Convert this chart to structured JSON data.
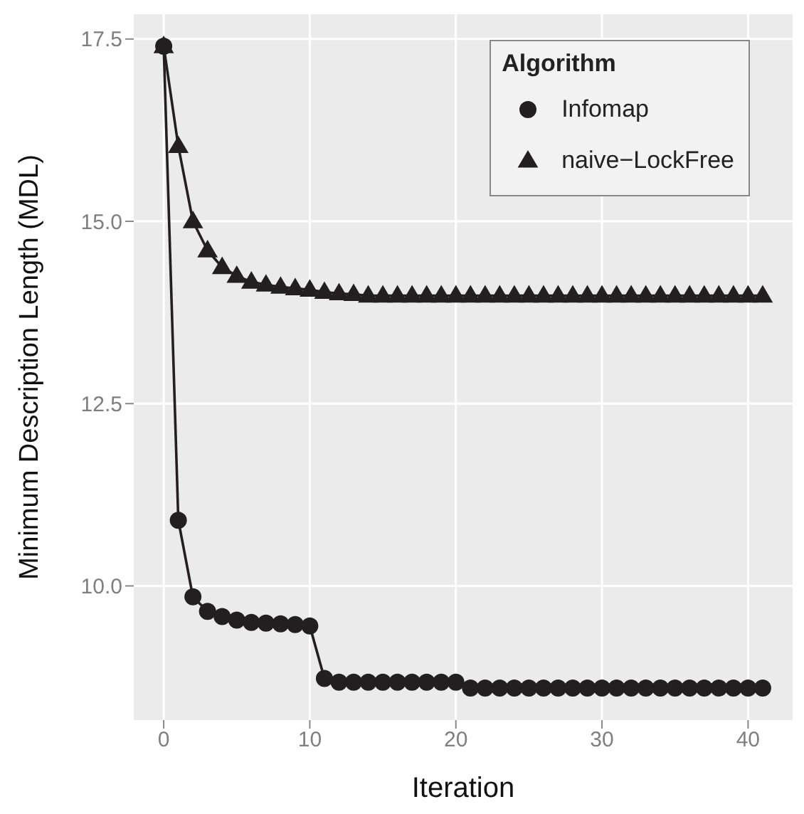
{
  "chart_data": {
    "type": "line",
    "xlabel": "Iteration",
    "ylabel": "Minimum Description Length (MDL)",
    "legend_title": "Algorithm",
    "legend": "top right",
    "grid": true,
    "line_style": "solid",
    "x": [
      0,
      1,
      2,
      3,
      4,
      5,
      6,
      7,
      8,
      9,
      10,
      11,
      12,
      13,
      14,
      15,
      16,
      17,
      18,
      19,
      20,
      21,
      22,
      23,
      24,
      25,
      26,
      27,
      28,
      29,
      30,
      31,
      32,
      33,
      34,
      35,
      36,
      37,
      38,
      39,
      40,
      41
    ],
    "series": [
      {
        "name": "Infomap",
        "color": "#231f20",
        "marker": "circle",
        "values": [
          17.4,
          10.9,
          9.85,
          9.65,
          9.58,
          9.53,
          9.5,
          9.49,
          9.48,
          9.47,
          9.45,
          8.73,
          8.68,
          8.68,
          8.68,
          8.68,
          8.68,
          8.68,
          8.68,
          8.68,
          8.68,
          8.6,
          8.6,
          8.6,
          8.6,
          8.6,
          8.6,
          8.6,
          8.6,
          8.6,
          8.6,
          8.6,
          8.6,
          8.6,
          8.6,
          8.6,
          8.6,
          8.6,
          8.6,
          8.6,
          8.6,
          8.6
        ]
      },
      {
        "name": "naive−LockFree",
        "color": "#231f20",
        "marker": "triangle",
        "values": [
          17.4,
          16.03,
          15.0,
          14.6,
          14.37,
          14.25,
          14.17,
          14.13,
          14.1,
          14.08,
          14.06,
          14.03,
          14.01,
          14.0,
          13.98,
          13.98,
          13.98,
          13.98,
          13.98,
          13.98,
          13.98,
          13.98,
          13.98,
          13.98,
          13.98,
          13.98,
          13.98,
          13.98,
          13.98,
          13.98,
          13.98,
          13.98,
          13.98,
          13.98,
          13.98,
          13.98,
          13.98,
          13.98,
          13.98,
          13.98,
          13.98,
          13.98
        ]
      }
    ],
    "xlim": [
      -2.05,
      43.05
    ],
    "xticks": [
      0,
      10,
      20,
      30,
      40
    ],
    "ylim": [
      8.16,
      17.84
    ],
    "yticks": [
      {
        "value": 10,
        "label": "10.0"
      },
      {
        "value": 12.5,
        "label": "12.5"
      },
      {
        "value": 15,
        "label": "15.0"
      },
      {
        "value": 17.5,
        "label": "17.5"
      }
    ]
  }
}
